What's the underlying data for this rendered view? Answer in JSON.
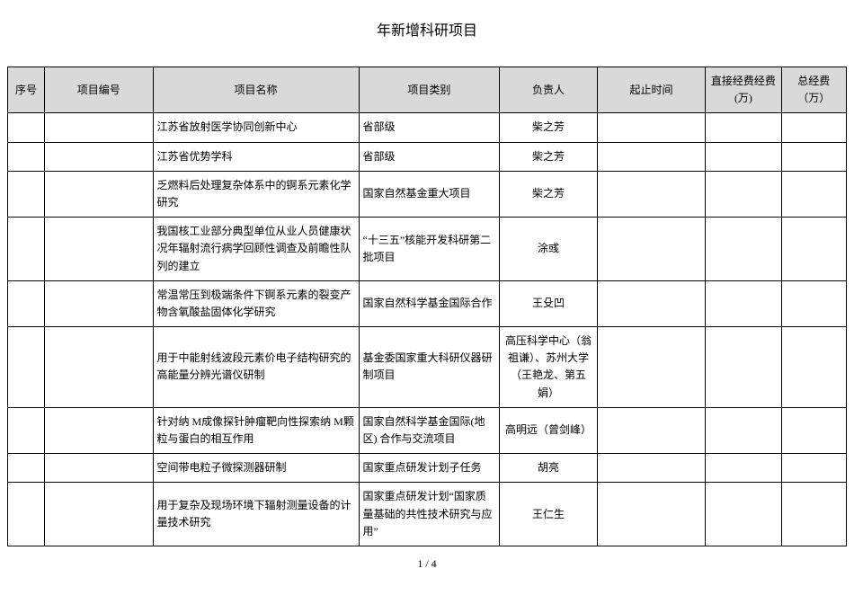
{
  "title": "年新增科研项目",
  "columns": [
    "序号",
    "项目编号",
    "项目名称",
    "项目类别",
    "负责人",
    "起止时间",
    "直接经费经费(万)",
    "总经费（万）"
  ],
  "rows": [
    {
      "seq": "",
      "code": "",
      "name": "江苏省放射医学协同创新中心",
      "type": "省部级",
      "owner": "柴之芳",
      "time": "",
      "fund1": "",
      "fund2": ""
    },
    {
      "seq": "",
      "code": "",
      "name": "江苏省优势学科",
      "type": "省部级",
      "owner": "柴之芳",
      "time": "",
      "fund1": "",
      "fund2": ""
    },
    {
      "seq": "",
      "code": "",
      "name": "乏燃料后处理复杂体系中的锕系元素化学研究",
      "type": "国家自然基金重大项目",
      "owner": "柴之芳",
      "time": "",
      "fund1": "",
      "fund2": ""
    },
    {
      "seq": "",
      "code": "",
      "name": "我国核工业部分典型单位从业人员健康状况年辐射流行病学回顾性调查及前瞻性队列的建立",
      "type": "“十三五”核能开发科研第二批项目",
      "owner": "涂彧",
      "time": "",
      "fund1": "",
      "fund2": ""
    },
    {
      "seq": "",
      "code": "",
      "name": "常温常压到极端条件下锕系元素的裂变产物含氧酸盐固体化学研究",
      "type": "国家自然科学基金国际合作",
      "owner": "王殳凹",
      "time": "",
      "fund1": "",
      "fund2": ""
    },
    {
      "seq": "",
      "code": "",
      "name": "用于中能射线波段元素价电子结构研究的高能量分辨光谱仪研制",
      "type": "基金委国家重大科研仪器研制项目",
      "owner": "高压科学中心（翁祖谦）、苏州大学（王艳龙、第五娟）",
      "time": "",
      "fund1": "",
      "fund2": ""
    },
    {
      "seq": "",
      "code": "",
      "name": "针对纳 M成像探针肿瘤靶向性探索纳 M颗粒与蛋白的相互作用",
      "type": "国家自然科学基金国际(地区) 合作与交流项目",
      "owner": "高明远（曾剑峰）",
      "time": "",
      "fund1": "",
      "fund2": ""
    },
    {
      "seq": "",
      "code": "",
      "name": "空间带电粒子微探测器研制",
      "type": "国家重点研发计划子任务",
      "owner": "胡亮",
      "time": "",
      "fund1": "",
      "fund2": ""
    },
    {
      "seq": "",
      "code": "",
      "name": "用于复杂及现场环境下辐射测量设备的计量技术研究",
      "type": "国家重点研发计划“国家质量基础的共性技术研究与应用”",
      "owner": "王仁生",
      "time": "",
      "fund1": "",
      "fund2": ""
    }
  ],
  "pager": "1 / 4"
}
